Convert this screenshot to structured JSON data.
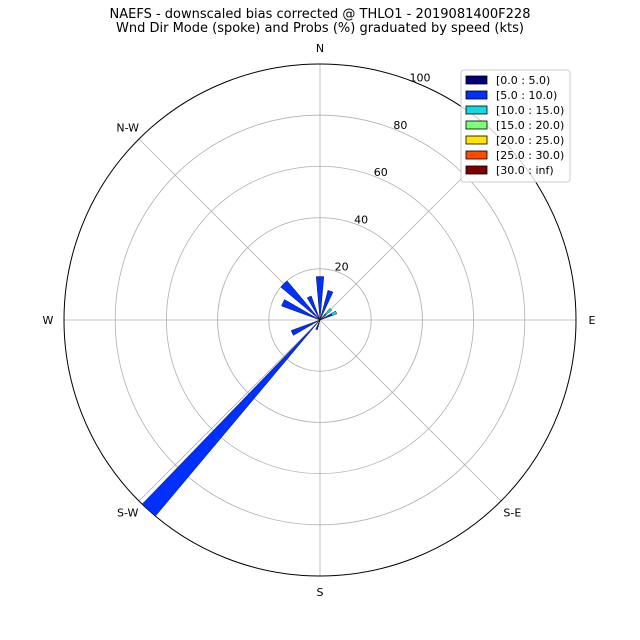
{
  "chart_data": {
    "type": "polar-bar",
    "title": "NAEFS - downscaled bias corrected @ THLO1 - 2019081400F228",
    "subtitle": "Wnd Dir Mode (spoke) and Probs (%) graduated by speed (kts)",
    "direction_labels": [
      "N",
      "N-W",
      "W",
      "S-W",
      "S",
      "S-E",
      "E"
    ],
    "radial_ticks": [
      "20",
      "40",
      "60",
      "80",
      "100"
    ],
    "radial_values": [
      20,
      40,
      60,
      80,
      100
    ],
    "rmax": 100,
    "grid": true,
    "legend_position": "top-right",
    "series": [
      {
        "name": "[0.0 : 5.0)",
        "color": "#00007f"
      },
      {
        "name": "[5.0 : 10.0)",
        "color": "#0030ff"
      },
      {
        "name": "[10.0 : 15.0)",
        "color": "#16d9e0"
      },
      {
        "name": "[15.0 : 20.0)",
        "color": "#7cff79"
      },
      {
        "name": "[20.0 : 25.0)",
        "color": "#ffe500"
      },
      {
        "name": "[25.0 : 30.0)",
        "color": "#ff4a00"
      },
      {
        "name": "[30.0 : inf)",
        "color": "#7f0000"
      }
    ],
    "bars": [
      {
        "direction_deg": 0,
        "width_deg": 10,
        "segments": [
          {
            "bin": 1,
            "value": 17
          }
        ]
      },
      {
        "direction_deg": 20,
        "width_deg": 10,
        "segments": [
          {
            "bin": 1,
            "value": 12
          }
        ]
      },
      {
        "direction_deg": 45,
        "width_deg": 10,
        "segments": [
          {
            "bin": 1,
            "value": 3
          },
          {
            "bin": 2,
            "value": 3
          }
        ]
      },
      {
        "direction_deg": 65,
        "width_deg": 10,
        "segments": [
          {
            "bin": 1,
            "value": 5
          },
          {
            "bin": 2,
            "value": 2
          }
        ]
      },
      {
        "direction_deg": 200,
        "width_deg": 10,
        "segments": [
          {
            "bin": 0,
            "value": 3
          },
          {
            "bin": 1,
            "value": 1
          }
        ]
      },
      {
        "direction_deg": 222,
        "width_deg": 4,
        "segments": [
          {
            "bin": 0,
            "value": 1
          },
          {
            "bin": 1,
            "value": 99
          }
        ]
      },
      {
        "direction_deg": 245,
        "width_deg": 10,
        "segments": [
          {
            "bin": 0,
            "value": 2
          },
          {
            "bin": 1,
            "value": 10
          }
        ]
      },
      {
        "direction_deg": 295,
        "width_deg": 10,
        "segments": [
          {
            "bin": 1,
            "value": 16
          }
        ]
      },
      {
        "direction_deg": 315,
        "width_deg": 10,
        "segments": [
          {
            "bin": 1,
            "value": 20
          }
        ]
      },
      {
        "direction_deg": 335,
        "width_deg": 10,
        "segments": [
          {
            "bin": 1,
            "value": 10
          }
        ]
      }
    ]
  }
}
